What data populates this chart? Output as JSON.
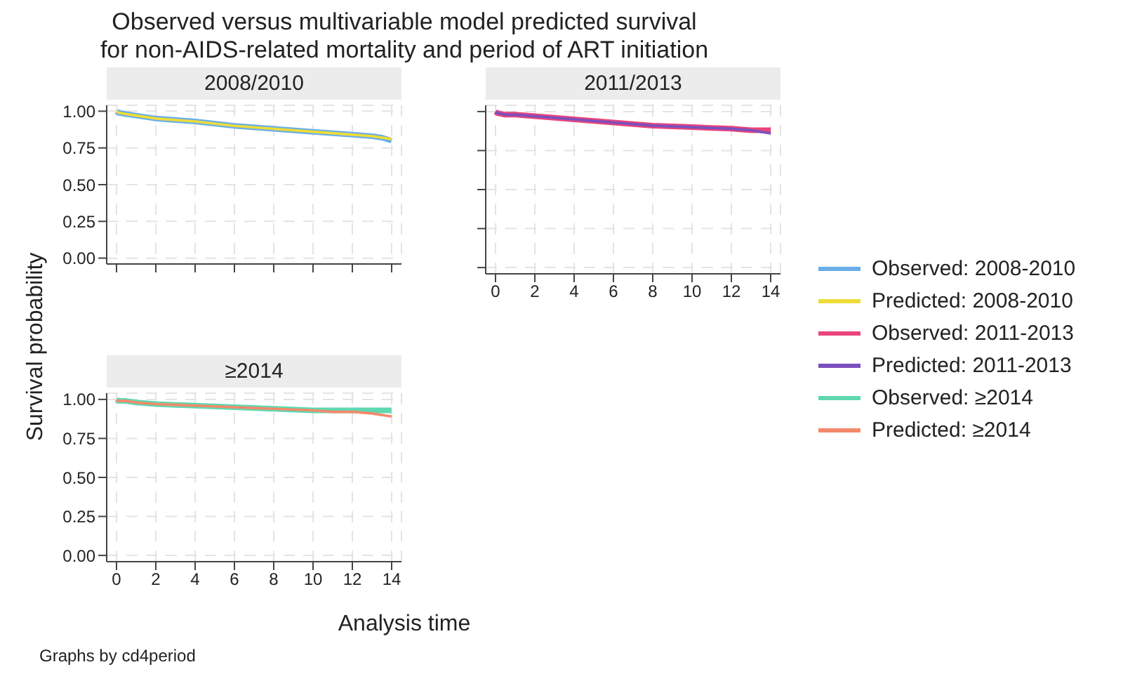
{
  "chart_data": [
    {
      "type": "line",
      "title": "Observed versus multivariable model predicted survival\nfor non-AIDS-related mortality and period of ART initiation",
      "subtitle": "2008/2010",
      "x": [
        0,
        0.1,
        0.5,
        1,
        2,
        4,
        6,
        8,
        10,
        12,
        13,
        13.5,
        14
      ],
      "xlim": [
        -0.5,
        14.5
      ],
      "xticks": [
        0,
        2,
        4,
        6,
        8,
        10,
        12,
        14
      ],
      "ylim": [
        -0.04,
        1.04
      ],
      "yticks": [
        {
          "value": 0,
          "label": "0.00"
        },
        {
          "value": 0.25,
          "label": "0.25"
        },
        {
          "value": 0.5,
          "label": "0.50"
        },
        {
          "value": 0.75,
          "label": "0.75"
        },
        {
          "value": 1,
          "label": "1.00"
        }
      ],
      "tick_labels": "y",
      "grid": true,
      "legend": "right",
      "marker": "none",
      "line_style": "solid",
      "series": [
        {
          "name": "Observed: 2008-2010",
          "color": "#6aaee8",
          "values": [
            1.0,
            0.99,
            0.98,
            0.97,
            0.95,
            0.93,
            0.9,
            0.88,
            0.86,
            0.84,
            0.83,
            0.82,
            0.8
          ]
        },
        {
          "name": "Predicted: 2008-2010",
          "color": "#eedc3a",
          "values": [
            1.0,
            0.99,
            0.98,
            0.97,
            0.95,
            0.93,
            0.9,
            0.88,
            0.86,
            0.84,
            0.83,
            0.82,
            0.81
          ]
        }
      ]
    },
    {
      "type": "line",
      "subtitle": "2011/2013",
      "x": [
        0,
        0.1,
        0.5,
        1,
        2,
        4,
        6,
        8,
        10,
        12,
        13,
        14
      ],
      "xlim": [
        -0.5,
        14.5
      ],
      "xticks": [
        0,
        2,
        4,
        6,
        8,
        10,
        12,
        14
      ],
      "ylim": [
        -0.04,
        1.04
      ],
      "yticks": [
        0,
        0.25,
        0.5,
        0.75,
        1
      ],
      "tick_labels": "x",
      "grid": true,
      "legend": "right",
      "marker": "none",
      "line_style": "solid",
      "series": [
        {
          "name": "Observed: 2011-2013",
          "color": "#e8457a",
          "values": [
            1.0,
            0.99,
            0.98,
            0.98,
            0.97,
            0.95,
            0.93,
            0.91,
            0.9,
            0.89,
            0.88,
            0.88
          ]
        },
        {
          "name": "Predicted: 2011-2013",
          "color": "#7b4fbf",
          "values": [
            1.0,
            0.99,
            0.98,
            0.98,
            0.97,
            0.95,
            0.93,
            0.91,
            0.9,
            0.89,
            0.88,
            0.86
          ]
        }
      ]
    },
    {
      "type": "line",
      "subtitle": "≥2014",
      "xlabel": "Analysis time",
      "ylabel": "Survival probability",
      "annotations": [
        "Graphs by cd4period"
      ],
      "x": [
        0,
        0.1,
        0.5,
        1,
        2,
        4,
        6,
        8,
        10,
        11,
        12,
        13,
        14
      ],
      "xlim": [
        -0.5,
        14.5
      ],
      "xticks": [
        0,
        2,
        4,
        6,
        8,
        10,
        12,
        14
      ],
      "ylim": [
        -0.04,
        1.04
      ],
      "yticks": [
        {
          "value": 0,
          "label": "0.00"
        },
        {
          "value": 0.25,
          "label": "0.25"
        },
        {
          "value": 0.5,
          "label": "0.50"
        },
        {
          "value": 0.75,
          "label": "0.75"
        },
        {
          "value": 1,
          "label": "1.00"
        }
      ],
      "grid": true,
      "legend": "right",
      "marker": "none",
      "line_style": "solid",
      "series": [
        {
          "name": "Observed: ≥2014",
          "color": "#5fd8b0",
          "values": [
            1.0,
            0.99,
            0.99,
            0.98,
            0.97,
            0.96,
            0.95,
            0.94,
            0.93,
            0.93,
            0.93,
            0.93,
            0.93
          ]
        },
        {
          "name": "Predicted: ≥2014",
          "color": "#f4896b",
          "values": [
            1.0,
            0.99,
            0.99,
            0.98,
            0.97,
            0.96,
            0.95,
            0.94,
            0.93,
            0.92,
            0.92,
            0.91,
            0.89
          ]
        }
      ]
    }
  ]
}
